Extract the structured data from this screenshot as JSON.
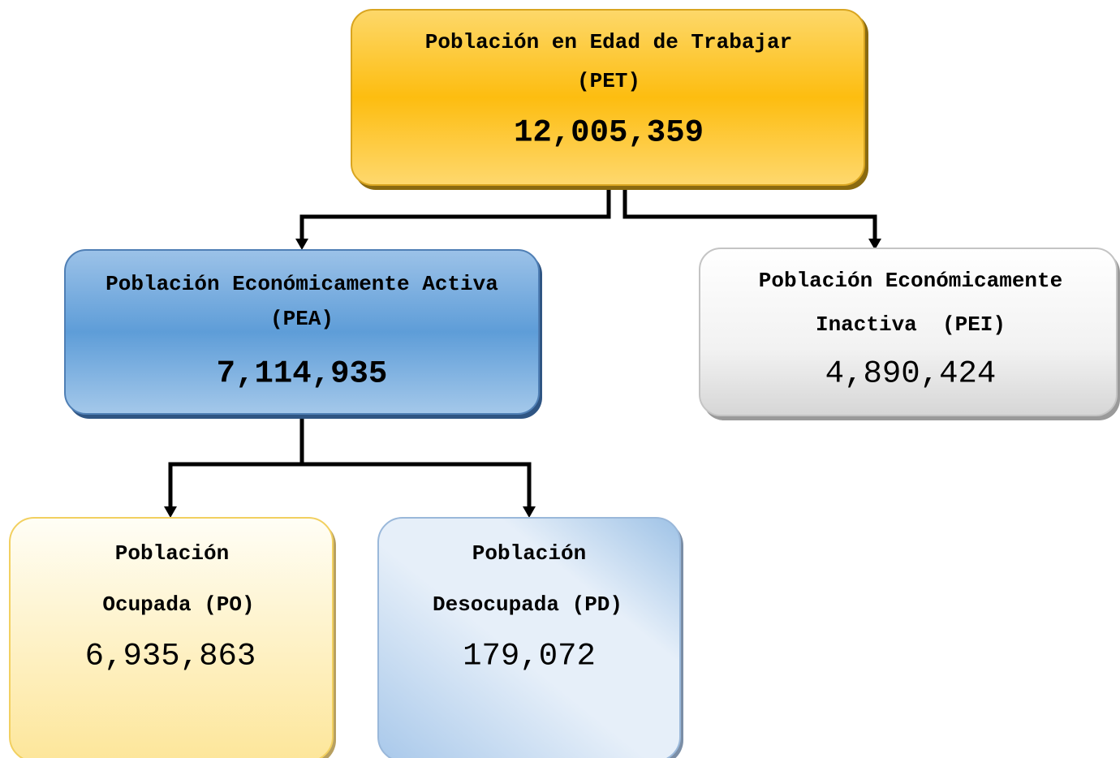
{
  "nodes": [
    {
      "lines": [
        "Población en Edad de Trabajar",
        "(PET)"
      ],
      "value": "12,005,359"
    },
    {
      "lines": [
        "Población Económicamente Activa",
        "(PEA)"
      ],
      "value": "7,114,935"
    },
    {
      "lines": [
        "Población Económicamente",
        "Inactiva  (PEI)"
      ],
      "value": "4,890,424"
    },
    {
      "lines": [
        "Población",
        "Ocupada (PO)"
      ],
      "value": "6,935,863"
    },
    {
      "lines": [
        "Población",
        "Desocupada (PD)"
      ],
      "value": "179,072"
    }
  ]
}
